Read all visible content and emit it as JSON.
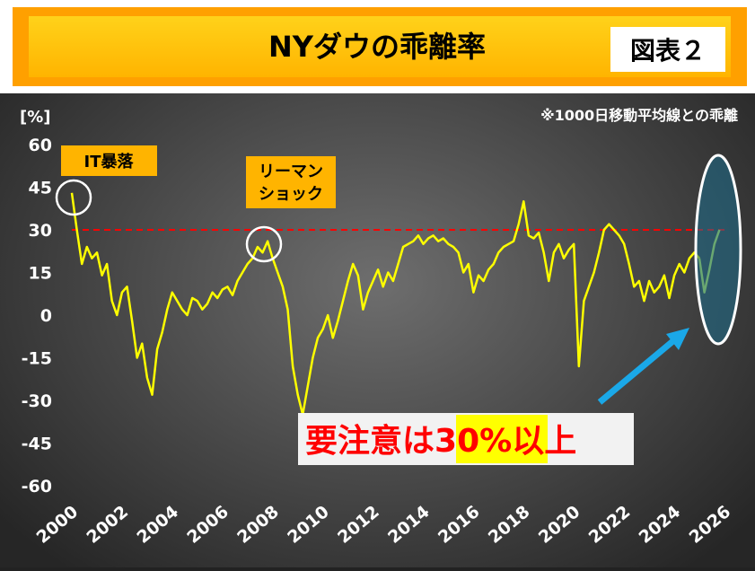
{
  "chart_data": {
    "type": "line",
    "title": "NYダウの乖離率",
    "badge": "図表２",
    "ylabel": "[%]",
    "note": "※1000日移動平均線との乖離",
    "annotations": {
      "it_crash": "IT暴落",
      "lehman": [
        "リーマン",
        "ショック"
      ],
      "warning": [
        "要注意は",
        "30%",
        "以上"
      ]
    },
    "reference_line": {
      "value": 30,
      "color": "#ff0000"
    },
    "xlim": [
      2000,
      2026
    ],
    "xticks": [
      2000,
      2002,
      2004,
      2006,
      2008,
      2010,
      2012,
      2014,
      2016,
      2018,
      2020,
      2022,
      2024,
      2026
    ],
    "ylim": [
      -60,
      60
    ],
    "yticks": [
      -60,
      -45,
      -30,
      -15,
      0,
      15,
      30,
      45,
      60
    ],
    "series": [
      {
        "color": "#ffff00",
        "x": [
          2000.0,
          2000.2,
          2000.4,
          2000.6,
          2000.8,
          2001.0,
          2001.2,
          2001.4,
          2001.6,
          2001.8,
          2002.0,
          2002.2,
          2002.4,
          2002.6,
          2002.8,
          2003.0,
          2003.2,
          2003.4,
          2003.6,
          2003.8,
          2004.0,
          2004.2,
          2004.4,
          2004.6,
          2004.8,
          2005.0,
          2005.2,
          2005.4,
          2005.6,
          2005.8,
          2006.0,
          2006.2,
          2006.4,
          2006.6,
          2006.8,
          2007.0,
          2007.2,
          2007.4,
          2007.6,
          2007.8,
          2008.0,
          2008.2,
          2008.4,
          2008.6,
          2008.8,
          2009.0,
          2009.2,
          2009.4,
          2009.6,
          2009.8,
          2010.0,
          2010.2,
          2010.4,
          2010.6,
          2010.8,
          2011.0,
          2011.2,
          2011.4,
          2011.6,
          2011.8,
          2012.0,
          2012.2,
          2012.4,
          2012.6,
          2012.8,
          2013.0,
          2013.2,
          2013.4,
          2013.6,
          2013.8,
          2014.0,
          2014.2,
          2014.4,
          2014.6,
          2014.8,
          2015.0,
          2015.2,
          2015.4,
          2015.6,
          2015.8,
          2016.0,
          2016.2,
          2016.4,
          2016.6,
          2016.8,
          2017.0,
          2017.2,
          2017.4,
          2017.6,
          2017.8,
          2018.0,
          2018.2,
          2018.4,
          2018.6,
          2018.8,
          2019.0,
          2019.2,
          2019.4,
          2019.6,
          2019.8,
          2020.0,
          2020.2,
          2020.4,
          2020.6,
          2020.8,
          2021.0,
          2021.2,
          2021.4,
          2021.6,
          2021.8,
          2022.0,
          2022.2,
          2022.4,
          2022.6,
          2022.8,
          2023.0,
          2023.2,
          2023.4,
          2023.6,
          2023.8,
          2024.0,
          2024.2,
          2024.4,
          2024.6,
          2024.8,
          2025.0
        ],
        "values": [
          43,
          30,
          18,
          24,
          20,
          22,
          14,
          18,
          5,
          0,
          8,
          10,
          -2,
          -15,
          -10,
          -22,
          -28,
          -12,
          -6,
          2,
          8,
          5,
          2,
          0,
          6,
          5,
          2,
          4,
          8,
          6,
          9,
          10,
          7,
          12,
          15,
          18,
          20,
          24,
          22,
          26,
          20,
          15,
          10,
          2,
          -18,
          -28,
          -35,
          -25,
          -15,
          -8,
          -5,
          0,
          -8,
          -2,
          5,
          12,
          18,
          14,
          2,
          8,
          12,
          16,
          10,
          15,
          12,
          18,
          24,
          25,
          26,
          28,
          25,
          27,
          28,
          26,
          27,
          25,
          24,
          22,
          15,
          18,
          8,
          14,
          12,
          16,
          18,
          22,
          24,
          25,
          26,
          32,
          40,
          28,
          27,
          29,
          22,
          12,
          22,
          25,
          20,
          23,
          25,
          -18,
          5,
          10,
          15,
          22,
          30,
          32,
          30,
          28,
          25,
          18,
          10,
          12,
          5,
          12,
          8,
          10,
          14,
          6,
          14,
          18,
          15,
          20,
          22,
          20
        ]
      },
      {
        "color": "#c8f050",
        "x": [
          2025.0,
          2025.2,
          2025.4,
          2025.6,
          2025.8
        ],
        "values": [
          20,
          8,
          16,
          25,
          30
        ]
      }
    ]
  }
}
